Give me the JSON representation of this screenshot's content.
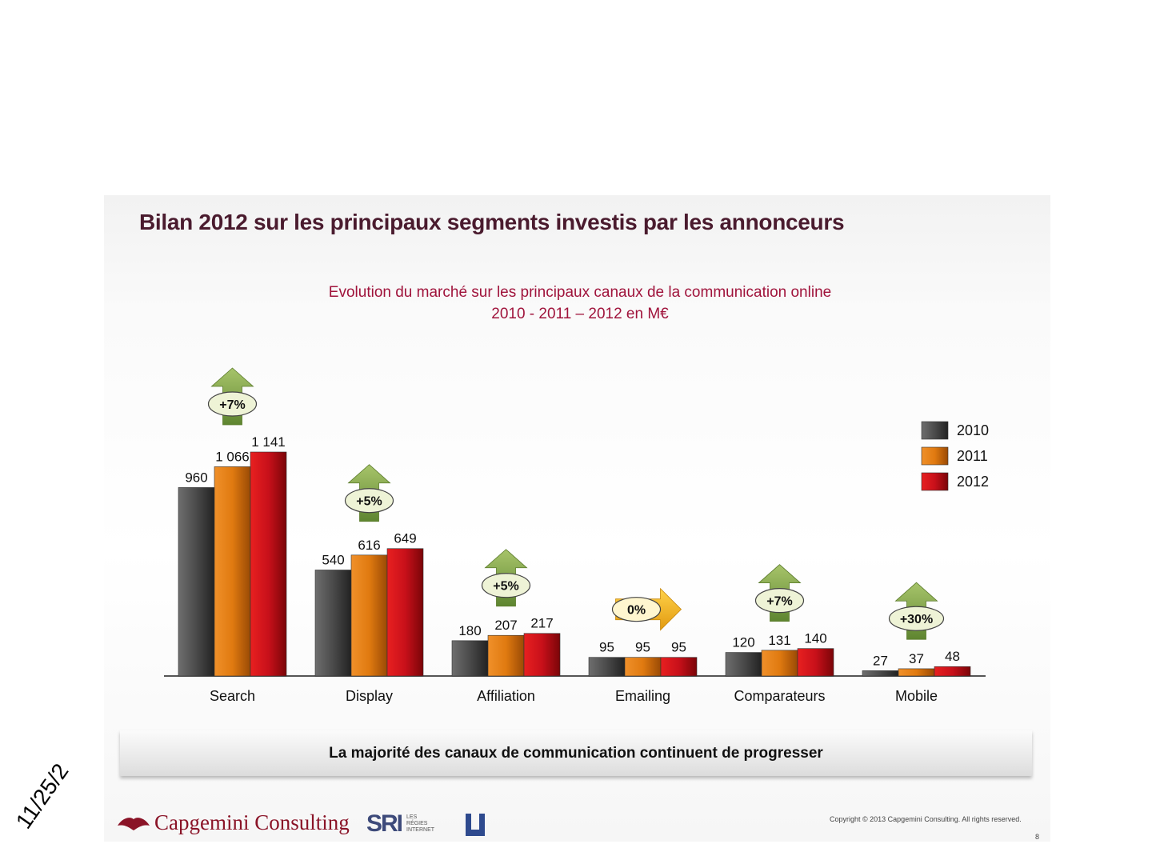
{
  "page": {
    "title": "Bilan 2012 sur les principaux segments investis par les annonceurs",
    "callout": "La majorité des canaux de communication continuent de progresser",
    "date_stamp": "11/25/2",
    "copyright": "Copyright © 2013 Capgemini Consulting. All rights reserved.",
    "page_number": "8",
    "logos": {
      "capgemini": "Capgemini Consulting",
      "sri": "SRI",
      "sri_sub": [
        "LES",
        "RÉGIES",
        "INTERNET"
      ]
    }
  },
  "chart_data": {
    "type": "bar",
    "title": "Evolution du marché sur les principaux canaux de la communication online",
    "subtitle": "2010 - 2011 – 2012 en M€",
    "categories": [
      "Search",
      "Display",
      "Affiliation",
      "Emailing",
      "Comparateurs",
      "Mobile"
    ],
    "series": [
      {
        "name": "2010",
        "values": [
          960,
          540,
          180,
          95,
          120,
          27
        ],
        "labels": [
          "960",
          "540",
          "180",
          "95",
          "120",
          "27"
        ],
        "color": "#4a4a4a"
      },
      {
        "name": "2011",
        "values": [
          1066,
          616,
          207,
          95,
          131,
          37
        ],
        "labels": [
          "1 066",
          "616",
          "207",
          "95",
          "131",
          "37"
        ],
        "color": "#e07a10"
      },
      {
        "name": "2012",
        "values": [
          1141,
          649,
          217,
          95,
          140,
          48
        ],
        "labels": [
          "1 141",
          "649",
          "217",
          "95",
          "140",
          "48"
        ],
        "color": "#c8101a"
      }
    ],
    "growth": [
      {
        "label": "+7%",
        "direction": "up"
      },
      {
        "label": "+5%",
        "direction": "up"
      },
      {
        "label": "+5%",
        "direction": "up"
      },
      {
        "label": "0%",
        "direction": "right"
      },
      {
        "label": "+7%",
        "direction": "up"
      },
      {
        "label": "+30%",
        "direction": "up"
      }
    ],
    "ylim": [
      0,
      1141
    ],
    "grid": false,
    "legend": "right"
  }
}
